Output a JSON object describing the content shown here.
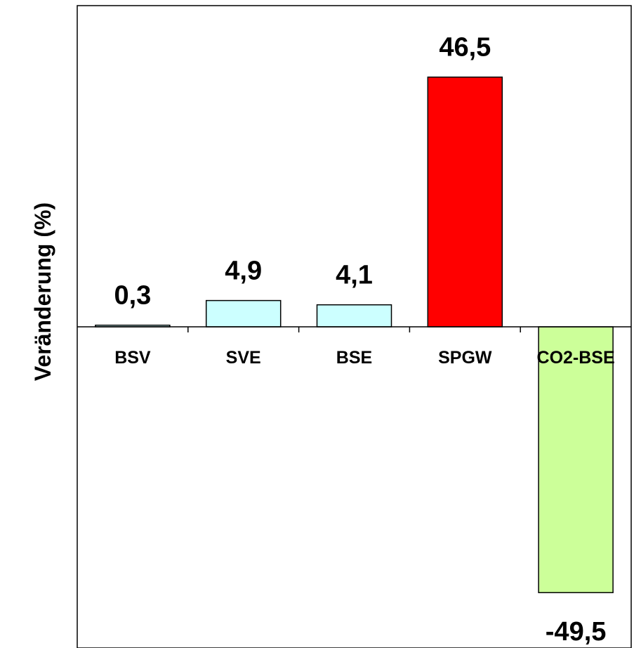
{
  "chart_data": {
    "type": "bar",
    "title": "",
    "xlabel": "",
    "ylabel": "Veränderung (%)",
    "categories": [
      "BSV",
      "SVE",
      "BSE",
      "SPGW",
      "CO2-BSE"
    ],
    "values": [
      0.3,
      4.9,
      4.1,
      46.5,
      -49.5
    ],
    "value_labels": [
      "0,3",
      "4,9",
      "4,1",
      "46,5",
      "-49,5"
    ],
    "colors": [
      "#ccffff",
      "#ccffff",
      "#ccffff",
      "#ff0000",
      "#ccff99"
    ],
    "ylim": [
      -56,
      60
    ],
    "grid": false,
    "legend": "none"
  }
}
